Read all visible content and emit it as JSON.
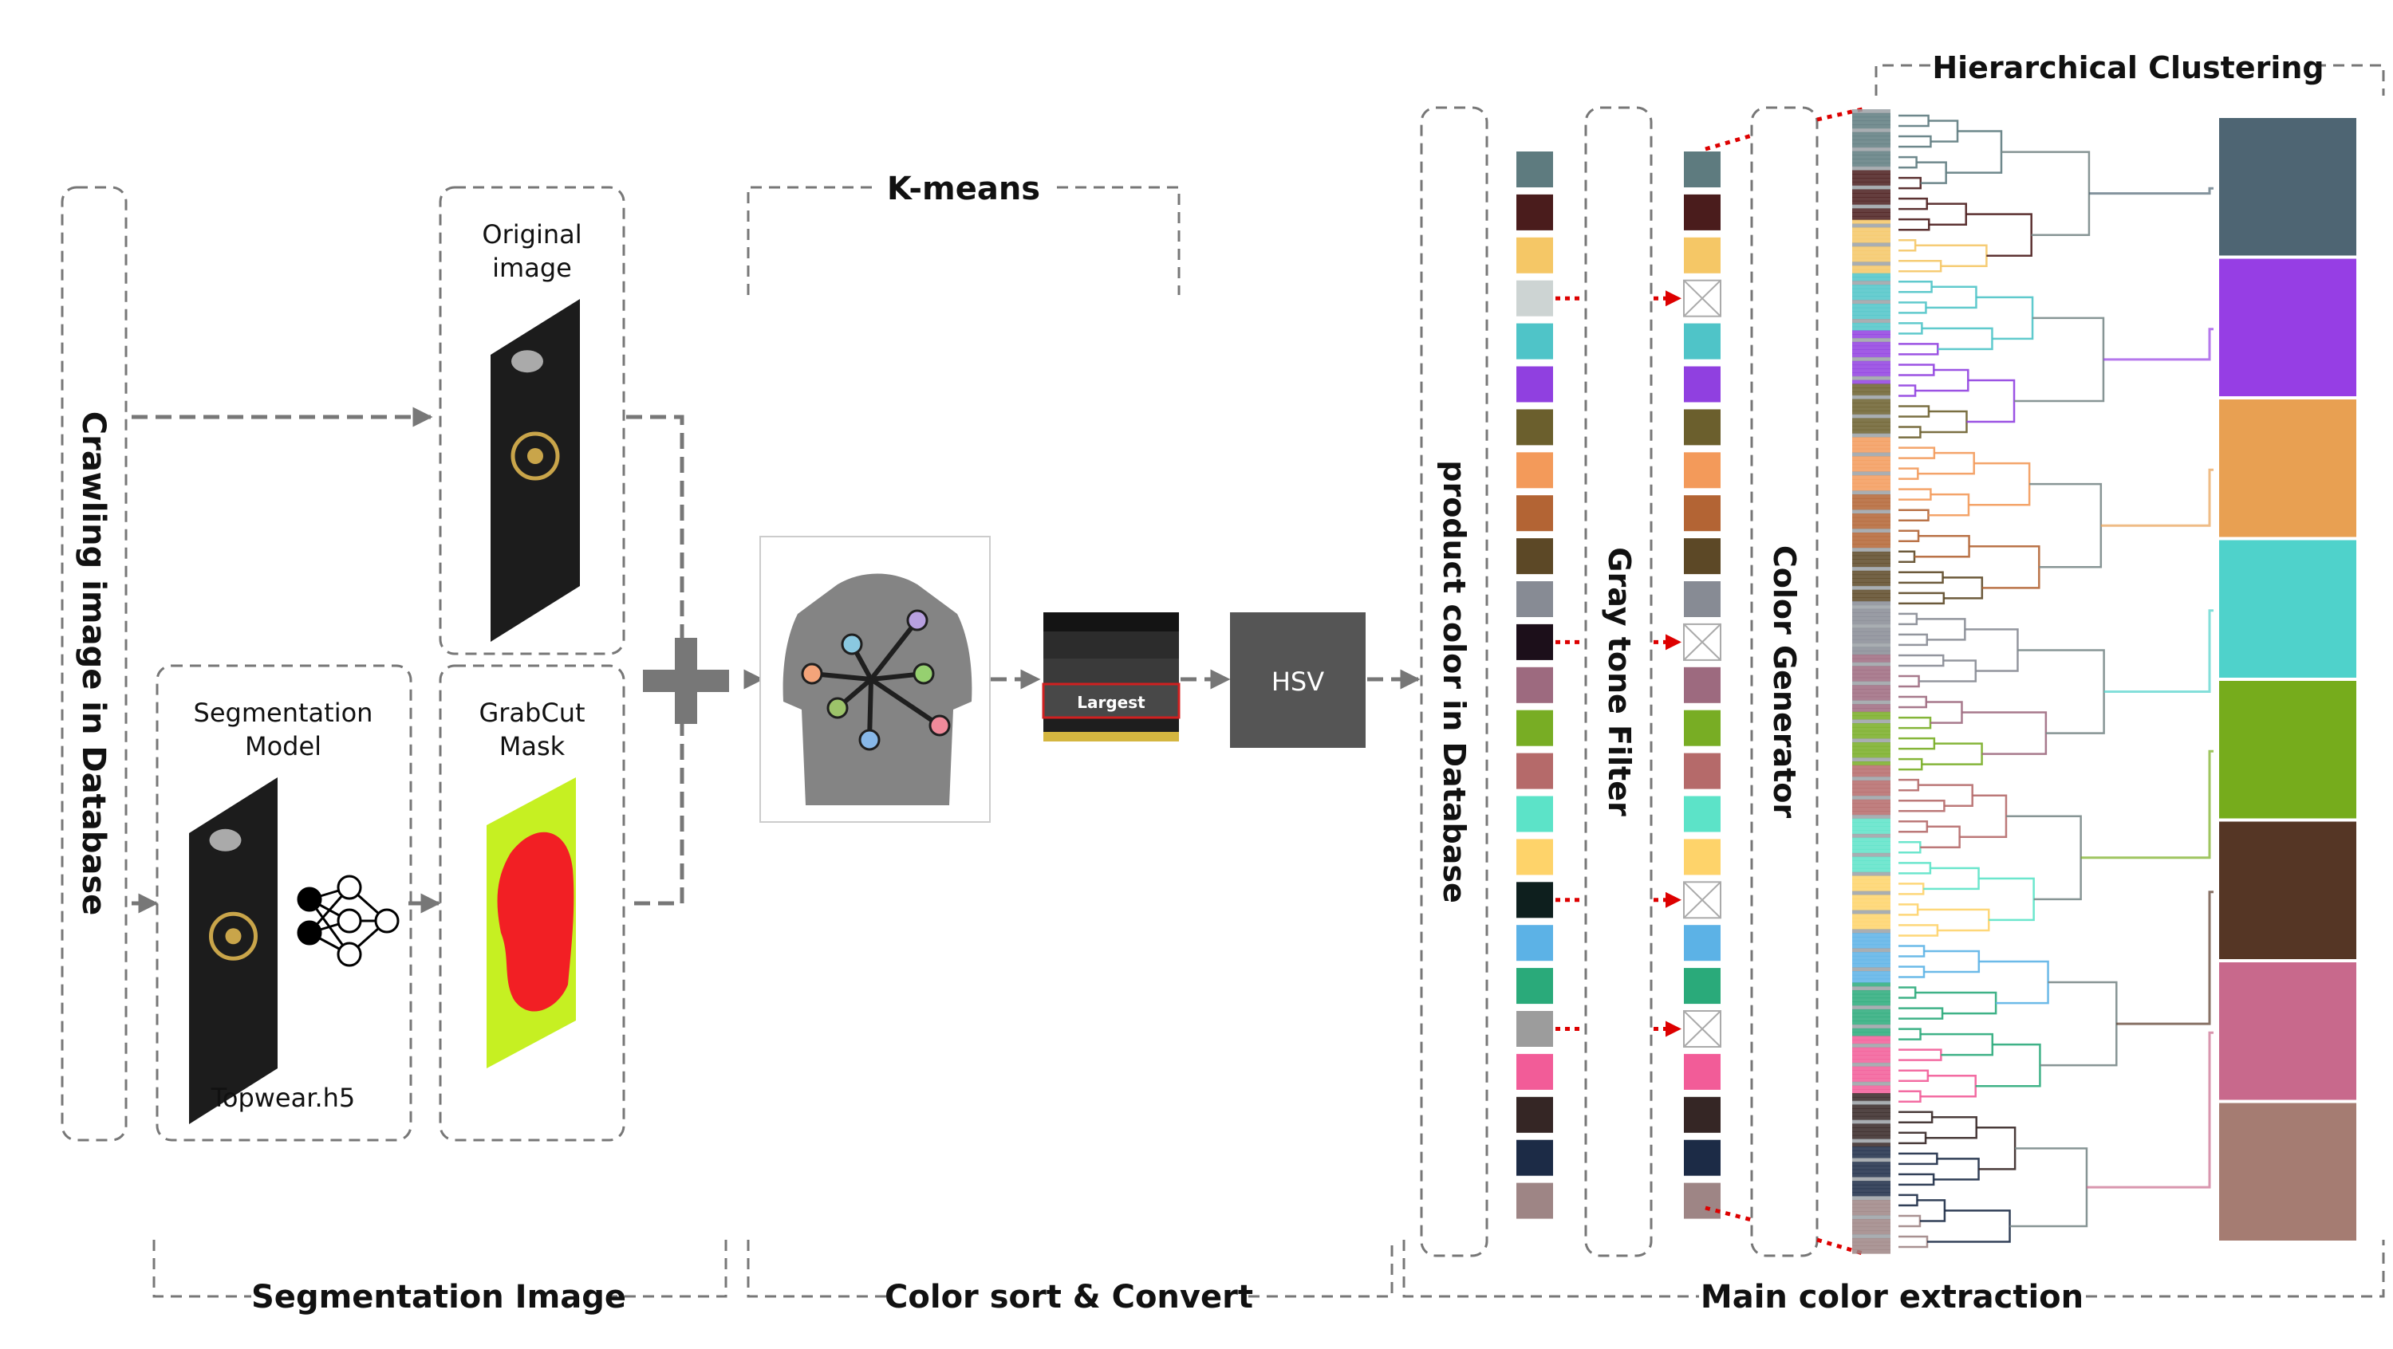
{
  "labels": {
    "crawling": "Crawling image in Database",
    "original": [
      "Original",
      "image"
    ],
    "segmentation_model": [
      "Segmentation",
      "Model"
    ],
    "topwear": "Topwear.h5",
    "grabcut": [
      "GrabCut",
      "Mask"
    ],
    "kmeans": "K-means",
    "largest": "Largest",
    "hsv": "HSV",
    "product_color": "product color in Database",
    "gray_filter": "Gray tone Filter",
    "color_generator": "Color Generator",
    "hierarchical": "Hierarchical Clustering",
    "segmentation_image": "Segmentation Image",
    "color_sort": "Color sort & Convert",
    "main_color": "Main color extraction"
  },
  "colors": {
    "dash": "#777777",
    "hsv_box": "#555555",
    "red_arrow": "#dd0000",
    "mask_red": "#f21f24",
    "mask_green": "#c6f022",
    "shirt": "#1c1c1c",
    "gold": "#c9a54a"
  },
  "kmeans_dots": [
    "#f4a47a",
    "#8ac8e0",
    "#b8a0e0",
    "#96d070",
    "#9cc36a",
    "#f08a9a",
    "#88b8e8"
  ],
  "kmeans_bars": [
    "#141414",
    "#2c2c2c",
    "#3a3a3a",
    "#484848",
    "#1e1e1e",
    "#d4b640"
  ],
  "swatches": [
    "#5e7b7f",
    "#4a1c1c",
    "#f5c766",
    "#cdd4d3",
    "#4fc4c8",
    "#9040e0",
    "#6b5f2d",
    "#f39a5a",
    "#b36434",
    "#5c4826",
    "#878b94",
    "#1c0f1a",
    "#9d6a7f",
    "#78ad24",
    "#b56a6a",
    "#5ce3c8",
    "#fed36a",
    "#0e1f1e",
    "#5cb2e6",
    "#2aaa7a",
    "#9c9c9c",
    "#f25c98",
    "#352625",
    "#1c2b46",
    "#9e8585"
  ],
  "gray_removed": [
    3,
    11,
    17,
    20
  ],
  "main_colors": [
    "#4e6573",
    "#963ee4",
    "#e8a052",
    "#4fd2cb",
    "#76ac1c",
    "#553625",
    "#c8698c",
    "#a57c72"
  ]
}
